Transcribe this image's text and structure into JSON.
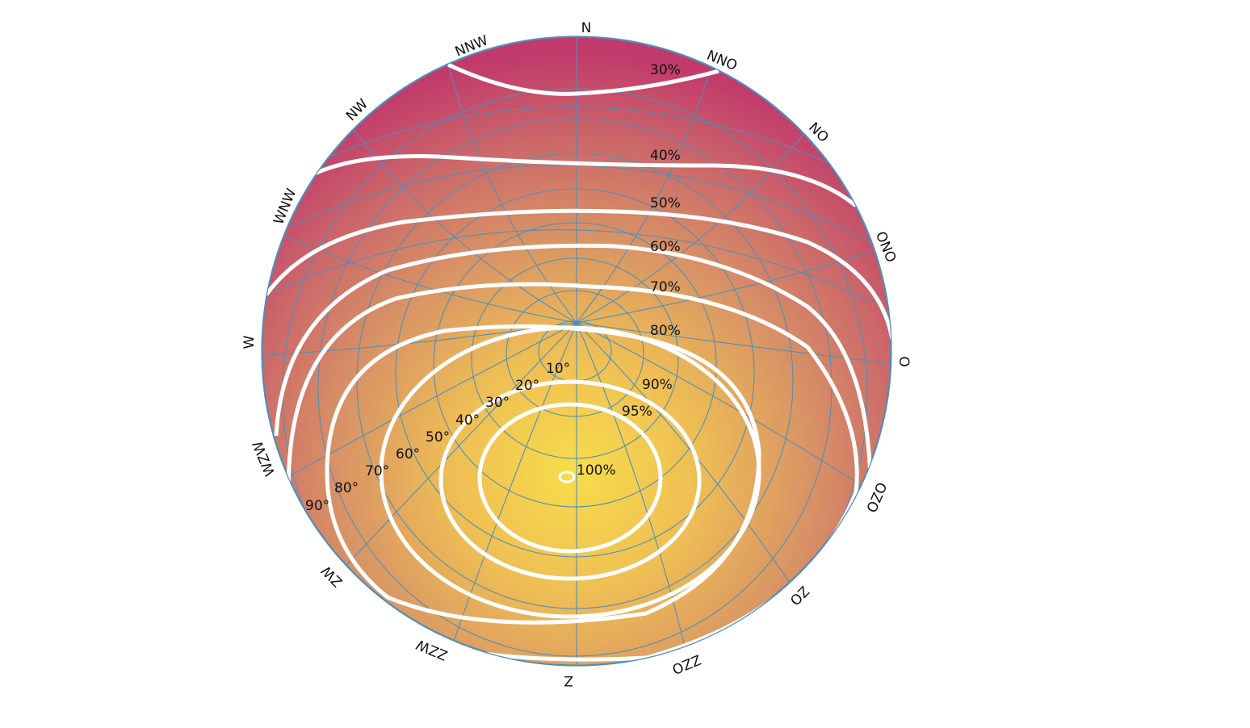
{
  "colors": {
    "peak": "#f7dc4a",
    "mid": "#e3a45e",
    "edge": "#d0876a",
    "top": "#c23a6b",
    "grid": "#4f8fb8",
    "contour": "#ffffff"
  },
  "compass": [
    {
      "label": "N",
      "azimuth": 0
    },
    {
      "label": "NNO",
      "azimuth": 22.5
    },
    {
      "label": "NO",
      "azimuth": 45
    },
    {
      "label": "ONO",
      "azimuth": 67.5
    },
    {
      "label": "O",
      "azimuth": 90
    },
    {
      "label": "OZO",
      "azimuth": 112.5
    },
    {
      "label": "ZO",
      "azimuth": 135
    },
    {
      "label": "ZZO",
      "azimuth": 157.5
    },
    {
      "label": "Z",
      "azimuth": 180
    },
    {
      "label": "ZZW",
      "azimuth": 202.5
    },
    {
      "label": "ZW",
      "azimuth": 225
    },
    {
      "label": "WZW",
      "azimuth": 247.5
    },
    {
      "label": "W",
      "azimuth": 270
    },
    {
      "label": "WNW",
      "azimuth": 292.5
    },
    {
      "label": "NW",
      "azimuth": 315
    },
    {
      "label": "NNW",
      "azimuth": 337.5
    }
  ],
  "contours": [
    {
      "label": "30%",
      "value": 30
    },
    {
      "label": "40%",
      "value": 40
    },
    {
      "label": "50%",
      "value": 50
    },
    {
      "label": "60%",
      "value": 60
    },
    {
      "label": "70%",
      "value": 70
    },
    {
      "label": "80%",
      "value": 80
    },
    {
      "label": "90%",
      "value": 90
    },
    {
      "label": "95%",
      "value": 95
    },
    {
      "label": "100%",
      "value": 100
    }
  ],
  "elevation_labels": [
    "10°",
    "20°",
    "30°",
    "40°",
    "50°",
    "60°",
    "70°",
    "80°",
    "90°"
  ]
}
